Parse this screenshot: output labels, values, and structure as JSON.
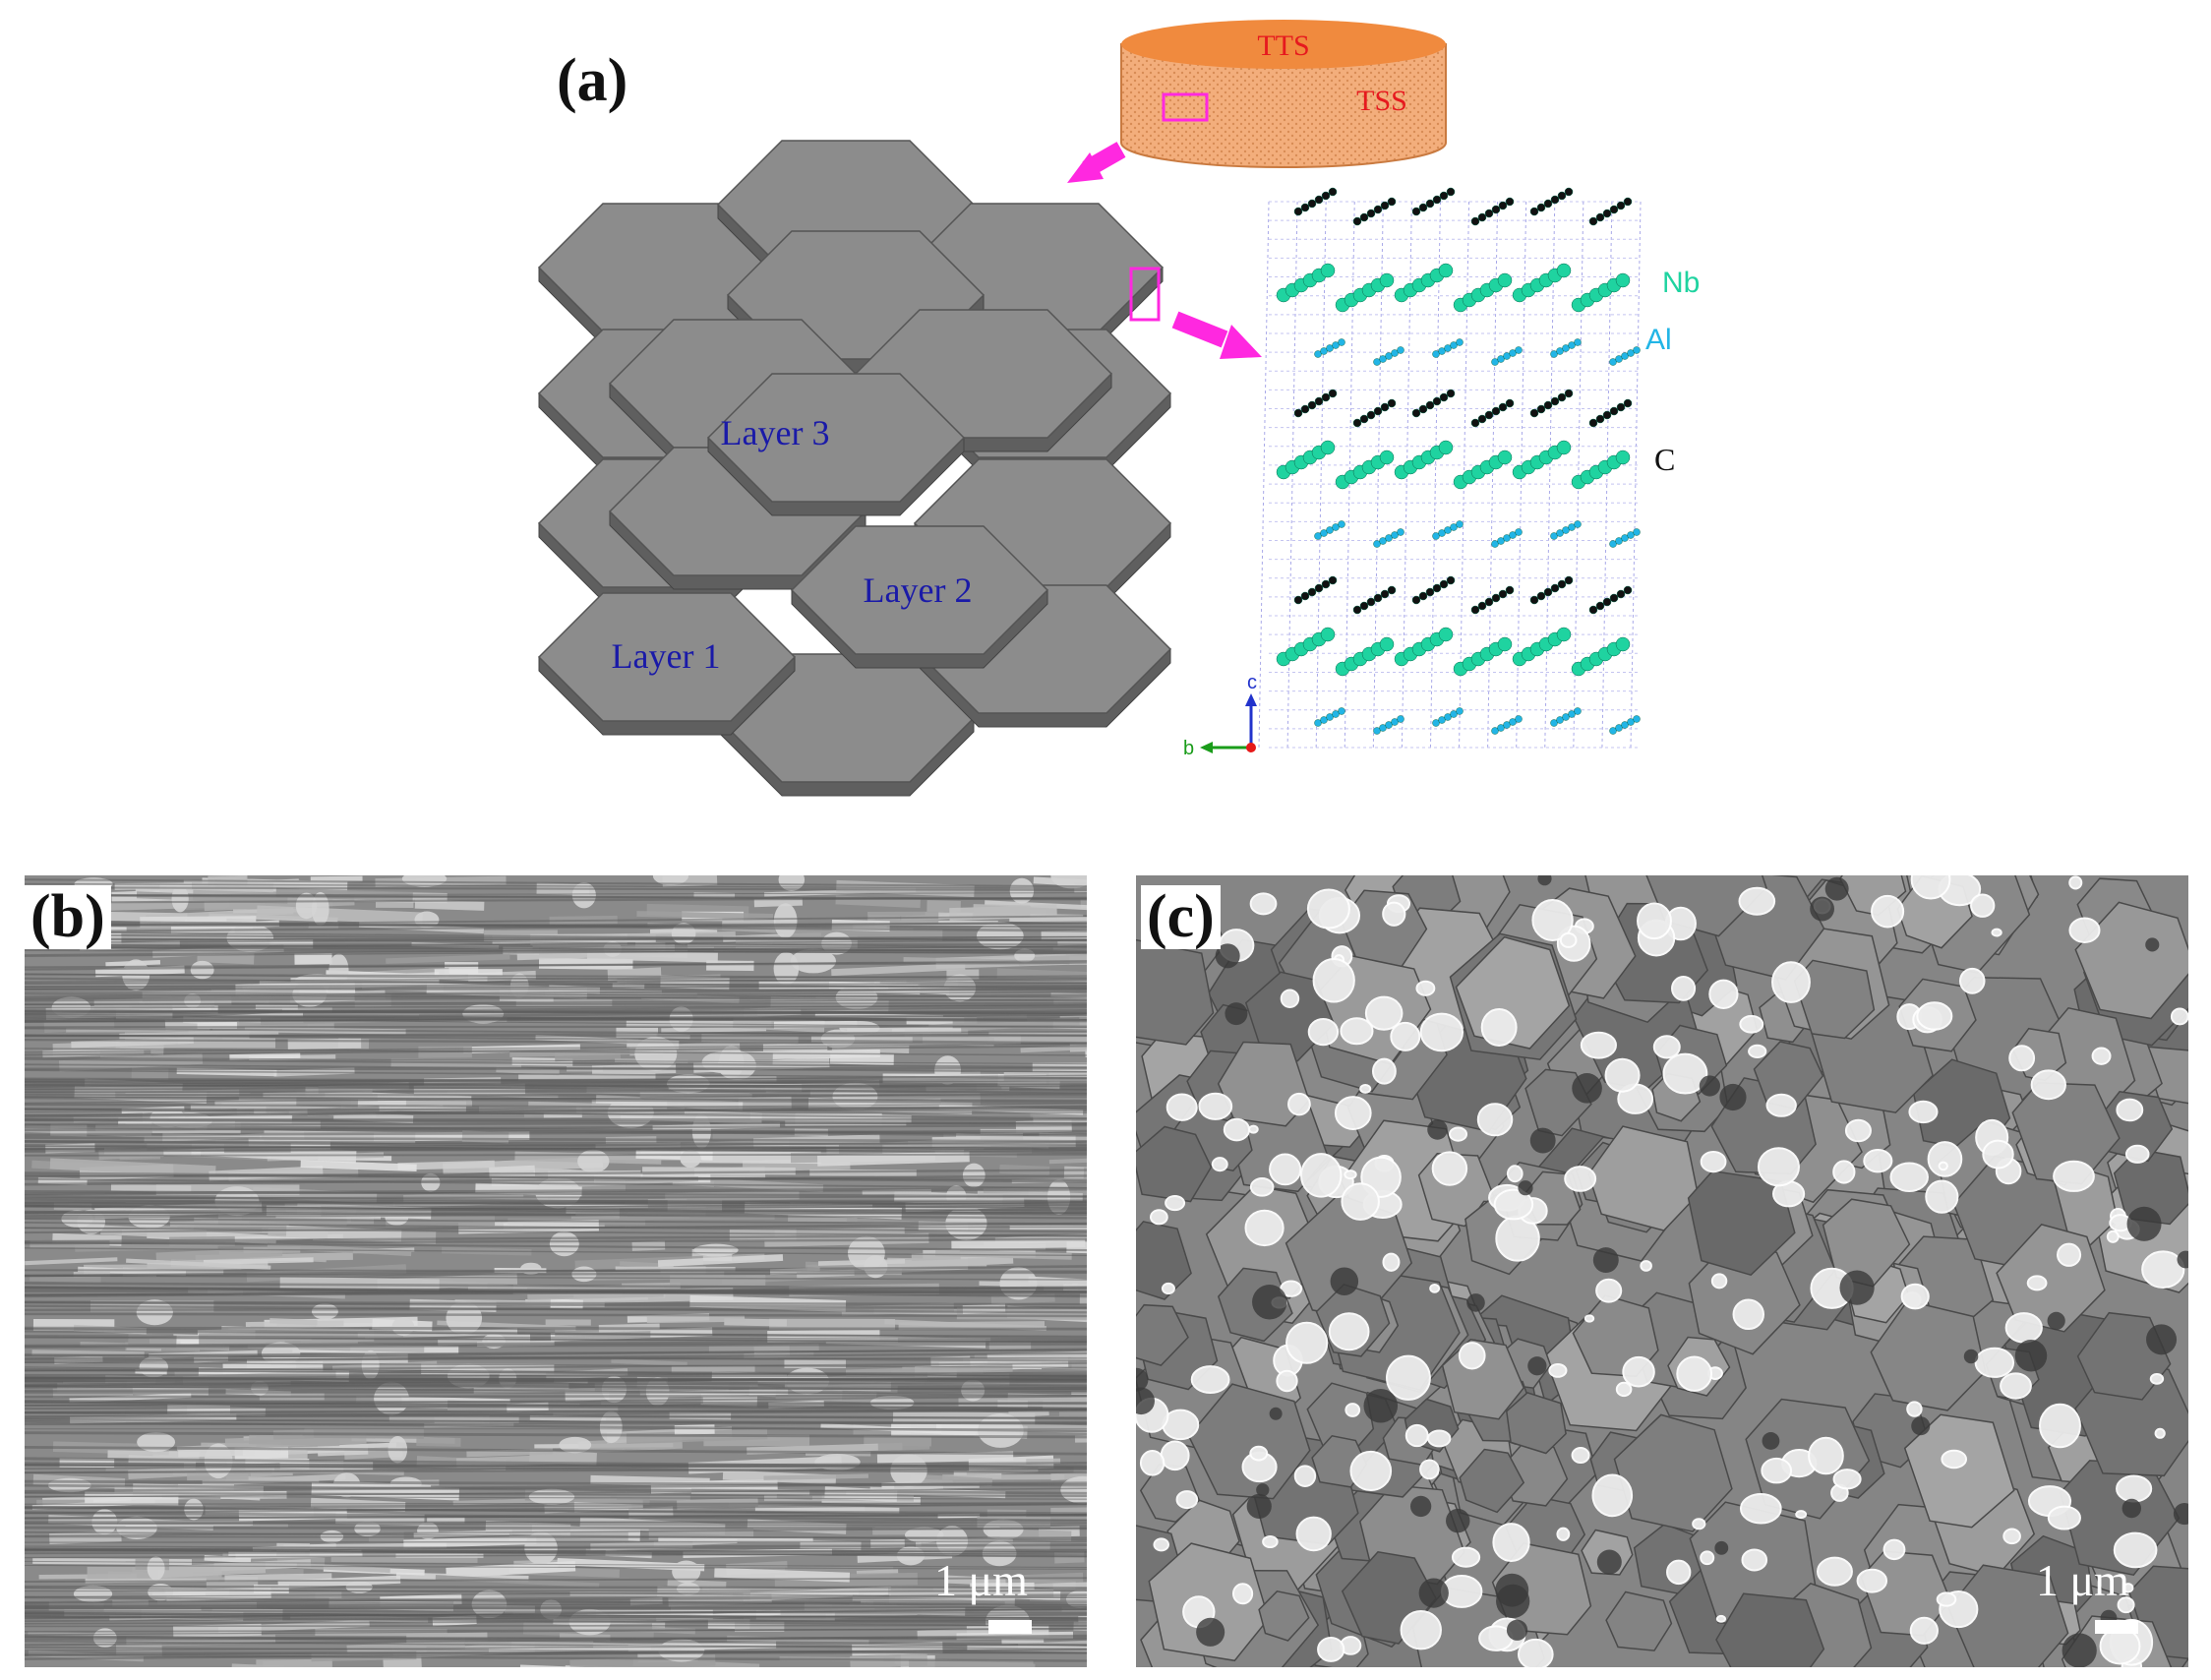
{
  "panels": {
    "a": {
      "label": "(a)"
    },
    "b": {
      "label": "(b)",
      "scale": "1 μm"
    },
    "c": {
      "label": "(c)",
      "scale": "1 μm"
    }
  },
  "disc": {
    "top": "TTS",
    "side": "TSS"
  },
  "layers": [
    "Layer 1",
    "Layer 2",
    "Layer 3"
  ],
  "crystal": {
    "elements": [
      {
        "name": "Nb",
        "color": "#1fd3a0"
      },
      {
        "name": "Al",
        "color": "#22b5e6"
      },
      {
        "name": "C",
        "color": "#111111"
      }
    ],
    "axes": {
      "c": "c",
      "b": "b"
    }
  },
  "colors": {
    "hex_face": "#8c8c8c",
    "hex_side": "#5f5f5f",
    "disc": "#f2a873",
    "disc_top": "#f08a40",
    "accent": "#ff28e0"
  }
}
